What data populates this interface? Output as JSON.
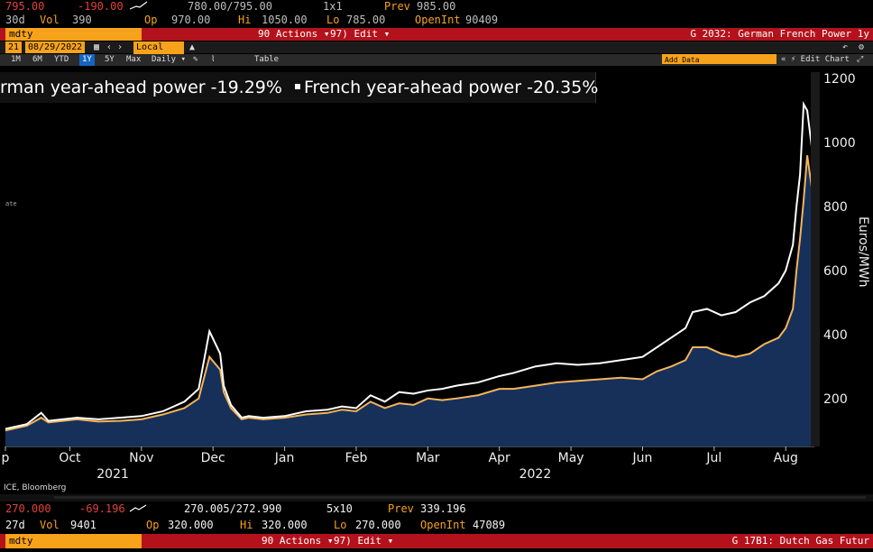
{
  "top_ticker": {
    "last": "795.00",
    "change": "-190.00",
    "bidask": "780.00/795.00",
    "size": "1x1",
    "prev_label": "Prev",
    "prev": "985.00",
    "r2_period": "30d",
    "vol_label": "Vol",
    "vol": "390",
    "op_label": "Op",
    "op": "970.00",
    "hi_label": "Hi",
    "hi": "1050.00",
    "lo_label": "Lo",
    "lo": "785.00",
    "oi_label": "OpenInt",
    "oi": "90409"
  },
  "top_bar": {
    "ticker_label": "mdty",
    "actions": "90 Actions ▾",
    "edit": "97) Edit ▾",
    "title": "G 2032: German French Power 1y"
  },
  "controls": {
    "start_date": "21",
    "end_date": "08/29/2022",
    "currency": "Local CCY",
    "annotation": "Add Data",
    "edit_chart": "« ⚡ Edit Chart"
  },
  "period_tabs": [
    "1M",
    "6M",
    "YTD",
    "1Y",
    "5Y",
    "Max",
    "Daily ▾"
  ],
  "period_selected": "1Y",
  "table_label": "Table",
  "legend": {
    "series1": "rman year-ahead power -19.29%",
    "series2": "French year-ahead power -20.35%"
  },
  "source": "ICE, Bloomberg",
  "side_note": "ate",
  "bottom_ticker": {
    "last": "270.000",
    "change": "-69.196",
    "bidask": "270.005/272.990",
    "size": "5x10",
    "prev_label": "Prev",
    "prev": "339.196",
    "r2_period": "27d",
    "vol_label": "Vol",
    "vol": "9401",
    "op_label": "Op",
    "op": "320.000",
    "hi_label": "Hi",
    "hi": "320.000",
    "lo_label": "Lo",
    "lo": "270.000",
    "oi_label": "OpenInt",
    "oi": "47089"
  },
  "bottom_bar": {
    "ticker_label": "mdty",
    "actions": "90 Actions ▾",
    "edit": "97) Edit ▾",
    "title": "G 17B1: Dutch Gas Futur"
  },
  "colors": {
    "german": "#f4b45a",
    "french": "#ffffff",
    "fill": "#16305a",
    "bar_red": "#b3121c",
    "orange": "#f7a21b"
  },
  "chart_data": {
    "type": "line",
    "title": "German French Power 1y",
    "ylabel": "Euros/MWh",
    "xlabel": "",
    "ylim": [
      50,
      1220
    ],
    "yticks": [
      "200",
      "400",
      "600",
      "800",
      "1000",
      "1200"
    ],
    "months": [
      "p",
      "Oct",
      "Nov",
      "Dec",
      "Jan",
      "Feb",
      "Mar",
      "Apr",
      "May",
      "Jun",
      "Jul",
      "Aug"
    ],
    "month_index": [
      0,
      0.9,
      1.9,
      2.9,
      3.9,
      4.9,
      5.9,
      6.9,
      7.9,
      8.9,
      9.9,
      10.9
    ],
    "years": [
      {
        "label": "2021",
        "at": 1.5
      },
      {
        "label": "2022",
        "at": 7.4
      }
    ],
    "x_range": [
      0,
      11.3
    ],
    "series": [
      {
        "name": "German year-ahead power",
        "x": [
          0,
          0.3,
          0.5,
          0.6,
          0.8,
          1.0,
          1.3,
          1.6,
          1.9,
          2.2,
          2.5,
          2.7,
          2.85,
          3.0,
          3.05,
          3.15,
          3.3,
          3.4,
          3.6,
          3.9,
          4.2,
          4.5,
          4.7,
          4.9,
          5.1,
          5.3,
          5.5,
          5.7,
          5.9,
          6.1,
          6.3,
          6.6,
          6.9,
          7.1,
          7.4,
          7.7,
          8.0,
          8.3,
          8.6,
          8.9,
          9.1,
          9.3,
          9.5,
          9.6,
          9.8,
          10.0,
          10.2,
          10.4,
          10.6,
          10.8,
          10.9,
          11.0,
          11.05,
          11.1,
          11.15,
          11.2,
          11.3
        ],
        "y": [
          100,
          115,
          140,
          125,
          130,
          135,
          128,
          130,
          135,
          150,
          170,
          200,
          330,
          290,
          220,
          170,
          135,
          140,
          135,
          140,
          150,
          155,
          165,
          160,
          190,
          170,
          185,
          180,
          200,
          195,
          200,
          210,
          230,
          230,
          240,
          250,
          255,
          260,
          265,
          260,
          285,
          300,
          320,
          360,
          360,
          340,
          330,
          340,
          370,
          390,
          420,
          480,
          600,
          700,
          820,
          960,
          800
        ]
      },
      {
        "name": "French year-ahead power",
        "x": [
          0,
          0.3,
          0.5,
          0.6,
          0.8,
          1.0,
          1.3,
          1.6,
          1.9,
          2.2,
          2.5,
          2.7,
          2.85,
          3.0,
          3.05,
          3.15,
          3.3,
          3.4,
          3.6,
          3.9,
          4.2,
          4.5,
          4.7,
          4.9,
          5.1,
          5.3,
          5.5,
          5.7,
          5.9,
          6.1,
          6.3,
          6.6,
          6.9,
          7.1,
          7.4,
          7.7,
          8.0,
          8.3,
          8.6,
          8.9,
          9.1,
          9.3,
          9.5,
          9.6,
          9.8,
          10.0,
          10.2,
          10.4,
          10.6,
          10.8,
          10.9,
          11.0,
          11.05,
          11.1,
          11.15,
          11.2,
          11.3
        ],
        "y": [
          105,
          120,
          155,
          130,
          135,
          140,
          135,
          140,
          145,
          160,
          190,
          230,
          410,
          340,
          240,
          180,
          140,
          145,
          140,
          145,
          160,
          165,
          175,
          170,
          210,
          190,
          220,
          215,
          225,
          230,
          240,
          250,
          270,
          280,
          300,
          310,
          305,
          310,
          320,
          330,
          360,
          390,
          420,
          470,
          480,
          460,
          470,
          500,
          520,
          560,
          600,
          680,
          800,
          900,
          1120,
          1100,
          920
        ]
      }
    ]
  }
}
